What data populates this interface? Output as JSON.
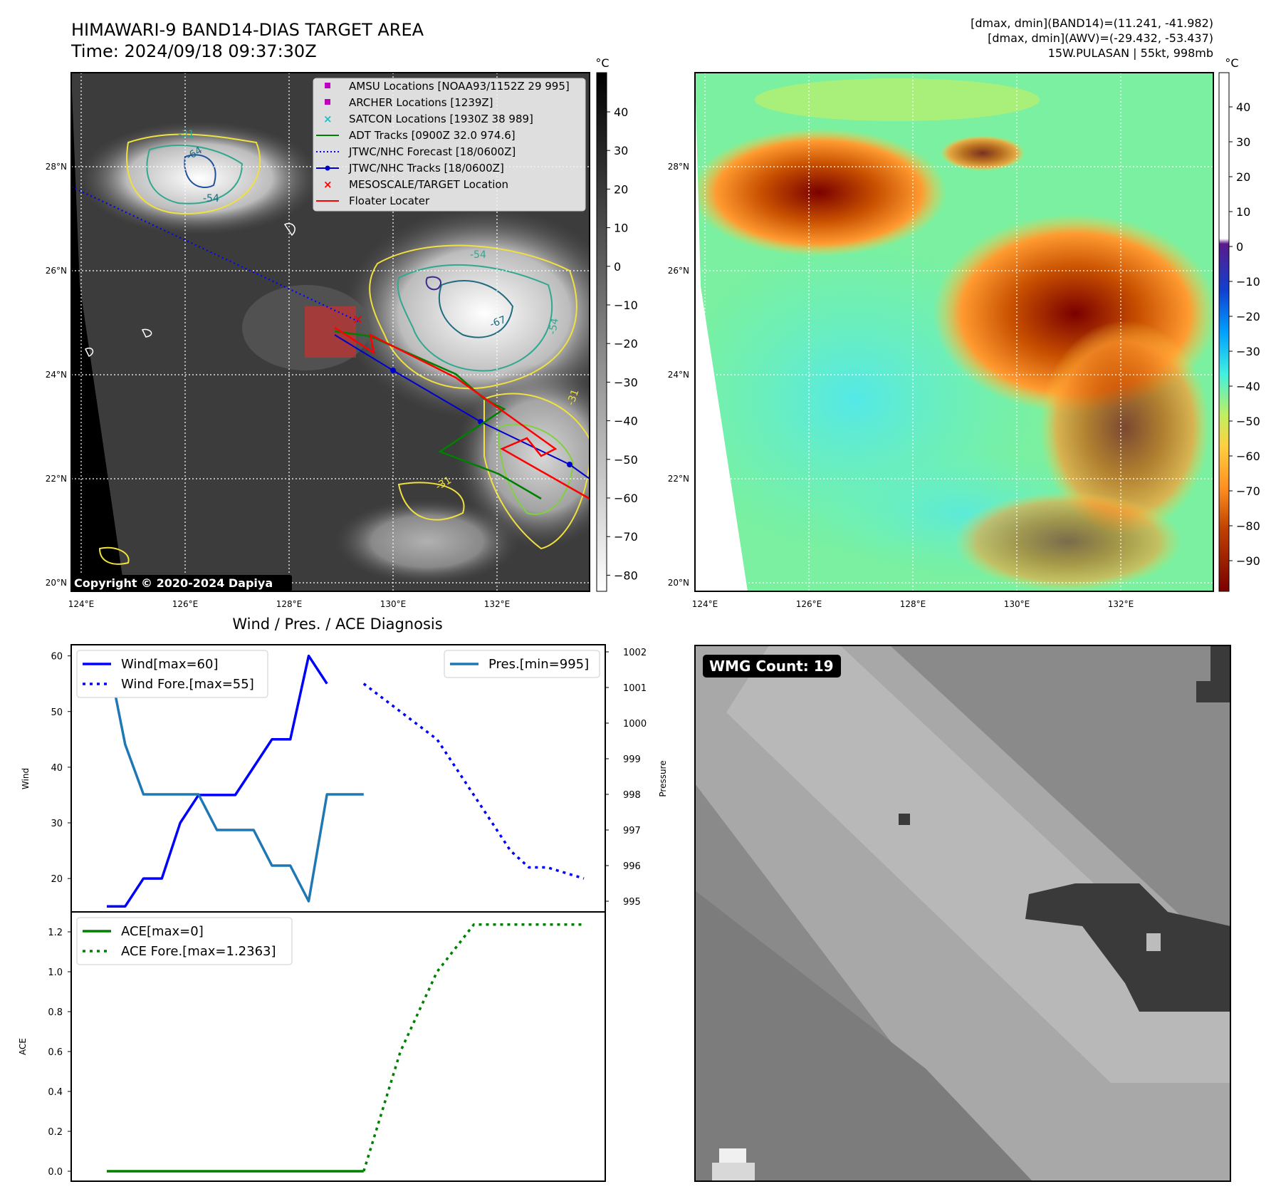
{
  "header": {
    "title": "HIMAWARI-9 BAND14-DIAS TARGET AREA",
    "time": "Time: 2024/09/18 09:37:30Z",
    "dmax_band14": "[dmax, dmin](BAND14)=(11.241, -41.982)",
    "dmax_awv": "[dmax, dmin](AWV)=(-29.432, -53.437)",
    "storm": "15W.PULASAN | 55kt, 998mb"
  },
  "maps": {
    "lat_labels": [
      "28°N",
      "26°N",
      "24°N",
      "22°N",
      "20°N"
    ],
    "lon_labels": [
      "124°E",
      "126°E",
      "128°E",
      "130°E",
      "132°E"
    ],
    "copyright": "Copyright © 2020-2024 Dapiya",
    "contour_labels": [
      "-31",
      "-54",
      "-64",
      "-54",
      "-67",
      "-54",
      "-31",
      "-31"
    ],
    "colorbar_left": {
      "unit": "°C",
      "ticks": [
        "40",
        "30",
        "20",
        "10",
        "0",
        "−10",
        "−20",
        "−30",
        "−40",
        "−50",
        "−60",
        "−70",
        "−80"
      ]
    },
    "colorbar_right": {
      "unit": "°C",
      "ticks": [
        "40",
        "30",
        "20",
        "10",
        "0",
        "−10",
        "−20",
        "−30",
        "−40",
        "−50",
        "−60",
        "−70",
        "−80",
        "−90"
      ]
    },
    "legend": [
      {
        "label": "AMSU Locations [NOAA93/1152Z 29 995]",
        "marker": "square",
        "color": "#c000c0"
      },
      {
        "label": "ARCHER Locations [1239Z]",
        "marker": "square",
        "color": "#c000c0"
      },
      {
        "label": "SATCON Locations [1930Z 38 989]",
        "marker": "x",
        "color": "#20c0c0"
      },
      {
        "label": "ADT Tracks [0900Z 32.0 974.6]",
        "marker": "line",
        "color": "#008000"
      },
      {
        "label": "JTWC/NHC Forecast [18/0600Z]",
        "marker": "dotted",
        "color": "#0000ff"
      },
      {
        "label": "JTWC/NHC Tracks [18/0600Z]",
        "marker": "line-dot",
        "color": "#0000cc"
      },
      {
        "label": "MESOSCALE/TARGET Location",
        "marker": "x",
        "color": "#ff0000"
      },
      {
        "label": "Floater Locater",
        "marker": "line",
        "color": "#ff0000"
      }
    ]
  },
  "wmg": {
    "label": "WMG Count: 19"
  },
  "chart_data": [
    {
      "type": "line",
      "title": "Wind / Pres. / ACE Diagnosis",
      "ylabel": "Wind",
      "y2label": "Pressure",
      "ylim": [
        14,
        62
      ],
      "yticks": [
        "60",
        "50",
        "40",
        "30",
        "20"
      ],
      "y2lim": [
        994.7,
        1002.2
      ],
      "y2ticks": [
        "1002",
        "1001",
        "1000",
        "999",
        "998",
        "997",
        "996",
        "995"
      ],
      "legend_left": [
        "Wind[max=60]",
        "Wind Fore.[max=55]"
      ],
      "legend_right": [
        "Pres.[min=995]"
      ],
      "series": [
        {
          "name": "Wind[max=60]",
          "color": "#0000ff",
          "style": "solid",
          "x": [
            0,
            1,
            2,
            3,
            4,
            5,
            6,
            7,
            8,
            9,
            10,
            11,
            12
          ],
          "values": [
            15,
            15,
            20,
            20,
            30,
            35,
            35,
            35,
            40,
            45,
            45,
            60,
            55
          ]
        },
        {
          "name": "Wind Fore.[max=55]",
          "color": "#0000ff",
          "style": "dotted",
          "x": [
            14,
            16,
            18,
            20,
            21,
            22,
            23,
            24,
            26
          ],
          "values": [
            55,
            50,
            45,
            35,
            30,
            25,
            22,
            22,
            20
          ]
        },
        {
          "name": "Pres.[min=995]",
          "color": "#1f77b4",
          "style": "solid",
          "axis": "y2",
          "x": [
            0,
            1,
            2,
            3,
            4,
            5,
            6,
            7,
            8,
            9,
            10,
            11,
            12,
            13,
            14
          ],
          "values": [
            1002,
            999.4,
            998,
            998,
            998,
            998,
            997,
            997,
            997,
            996,
            996,
            995,
            998,
            998,
            998
          ]
        }
      ]
    },
    {
      "type": "line",
      "ylabel": "ACE",
      "ylim": [
        -0.05,
        1.3
      ],
      "yticks": [
        "1.2",
        "1.0",
        "0.8",
        "0.6",
        "0.4",
        "0.2",
        "0.0"
      ],
      "legend": [
        "ACE[max=0]",
        "ACE Fore.[max=1.2363]"
      ],
      "series": [
        {
          "name": "ACE[max=0]",
          "color": "#008000",
          "style": "solid",
          "x": [
            0,
            14
          ],
          "values": [
            0,
            0
          ]
        },
        {
          "name": "ACE Fore.[max=1.2363]",
          "color": "#008000",
          "style": "dotted",
          "x": [
            14,
            16,
            18,
            20,
            22,
            26
          ],
          "values": [
            0,
            0.6,
            1.0,
            1.2363,
            1.2363,
            1.2363
          ]
        }
      ]
    }
  ]
}
